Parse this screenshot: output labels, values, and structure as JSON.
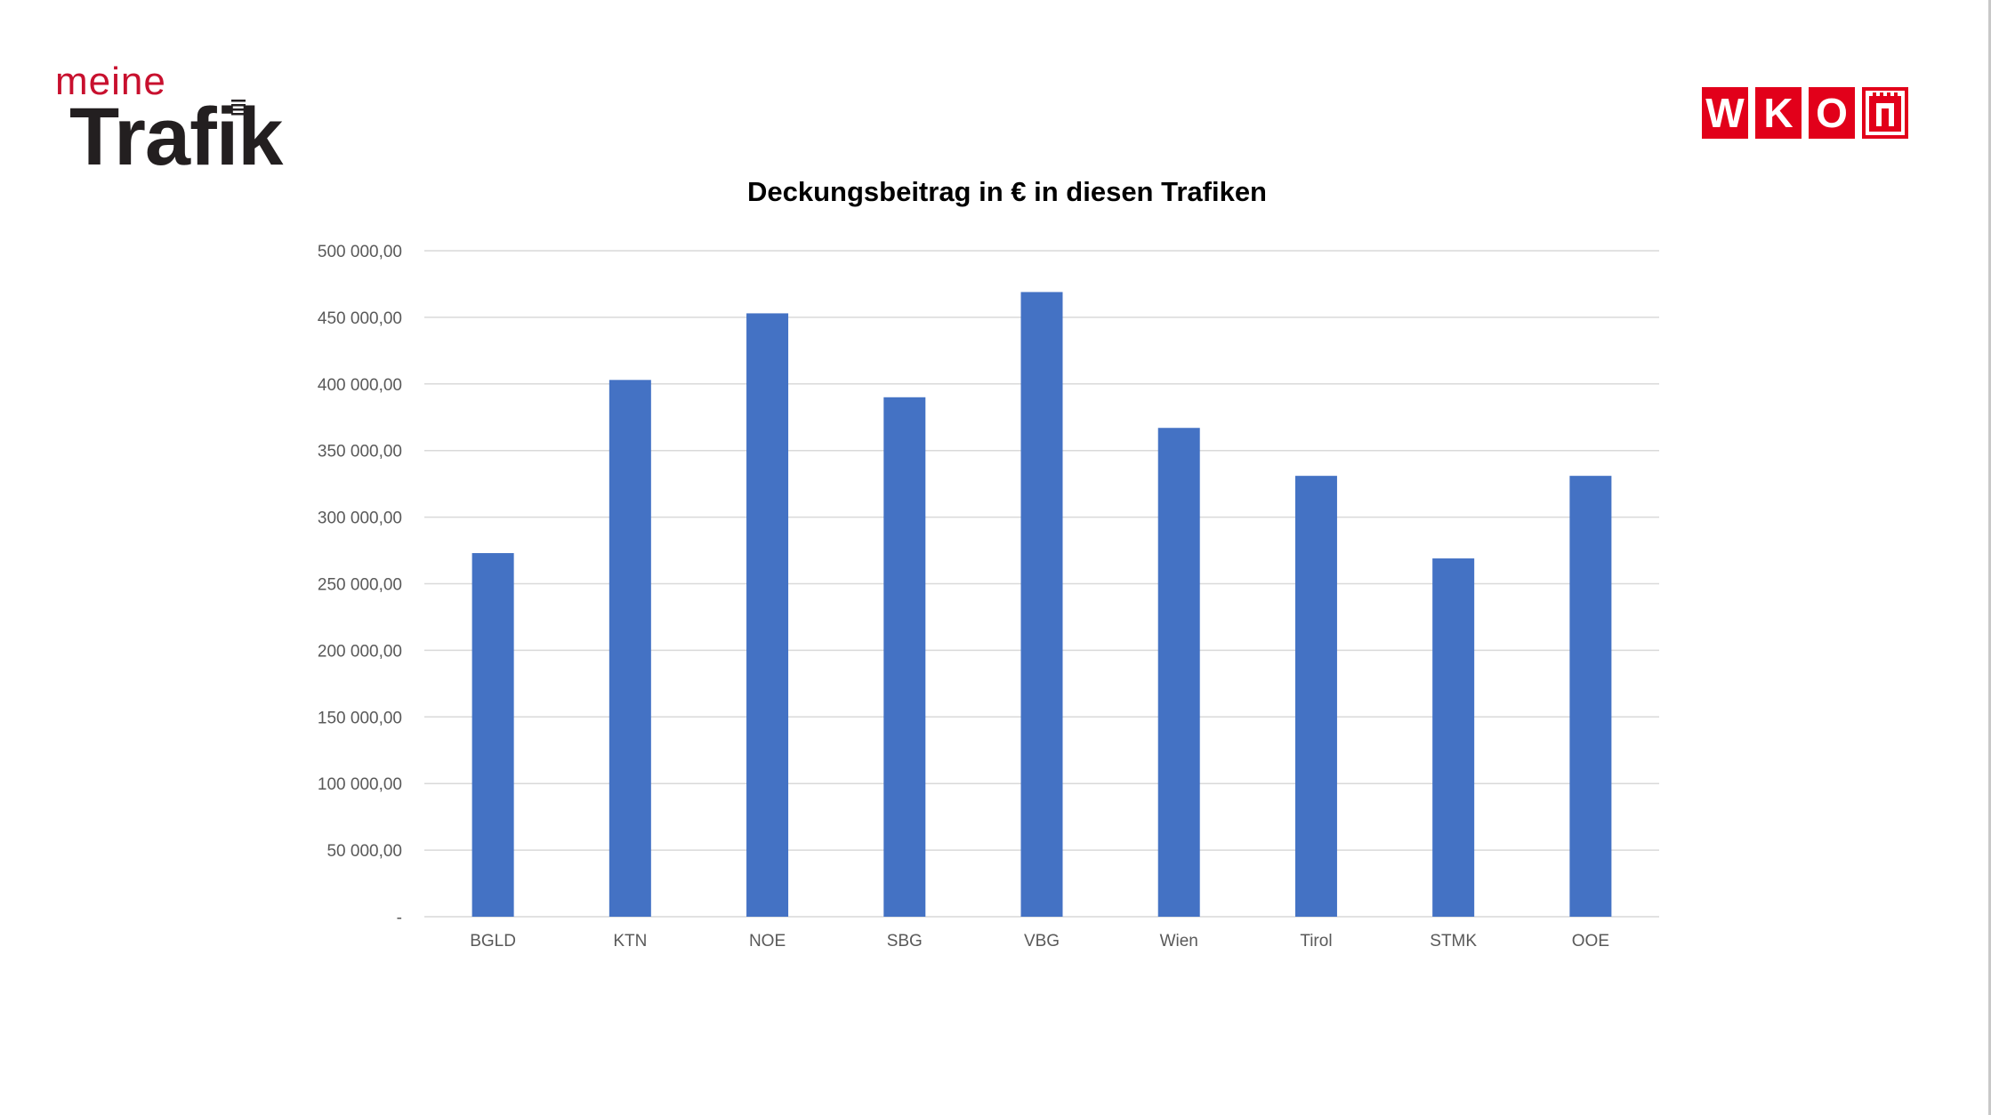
{
  "logos": {
    "left_top": "meine",
    "left_main": "Trafik",
    "right_letters": [
      "W",
      "K",
      "O"
    ],
    "right_crest_icon": "crest-icon"
  },
  "colors": {
    "bar": "#4472C4",
    "grid": "#d9d9d9",
    "axis_text": "#595959",
    "brand_red": "#e2001a"
  },
  "chart_data": {
    "type": "bar",
    "title": "Deckungsbeitrag in € in diesen Trafiken",
    "xlabel": "",
    "ylabel": "",
    "categories": [
      "BGLD",
      "KTN",
      "NOE",
      "SBG",
      "VBG",
      "Wien",
      "Tirol",
      "STMK",
      "OOE"
    ],
    "values": [
      273000,
      403000,
      453000,
      390000,
      469000,
      367000,
      331000,
      269000,
      331000
    ],
    "ylim": [
      0,
      500000
    ],
    "y_ticks": [
      0,
      50000,
      100000,
      150000,
      200000,
      250000,
      300000,
      350000,
      400000,
      450000,
      500000
    ],
    "y_tick_labels": [
      "-",
      "50 000,00",
      "100 000,00",
      "150 000,00",
      "200 000,00",
      "250 000,00",
      "300 000,00",
      "350 000,00",
      "400 000,00",
      "450 000,00",
      "500 000,00"
    ],
    "grid": true,
    "legend": "none"
  }
}
